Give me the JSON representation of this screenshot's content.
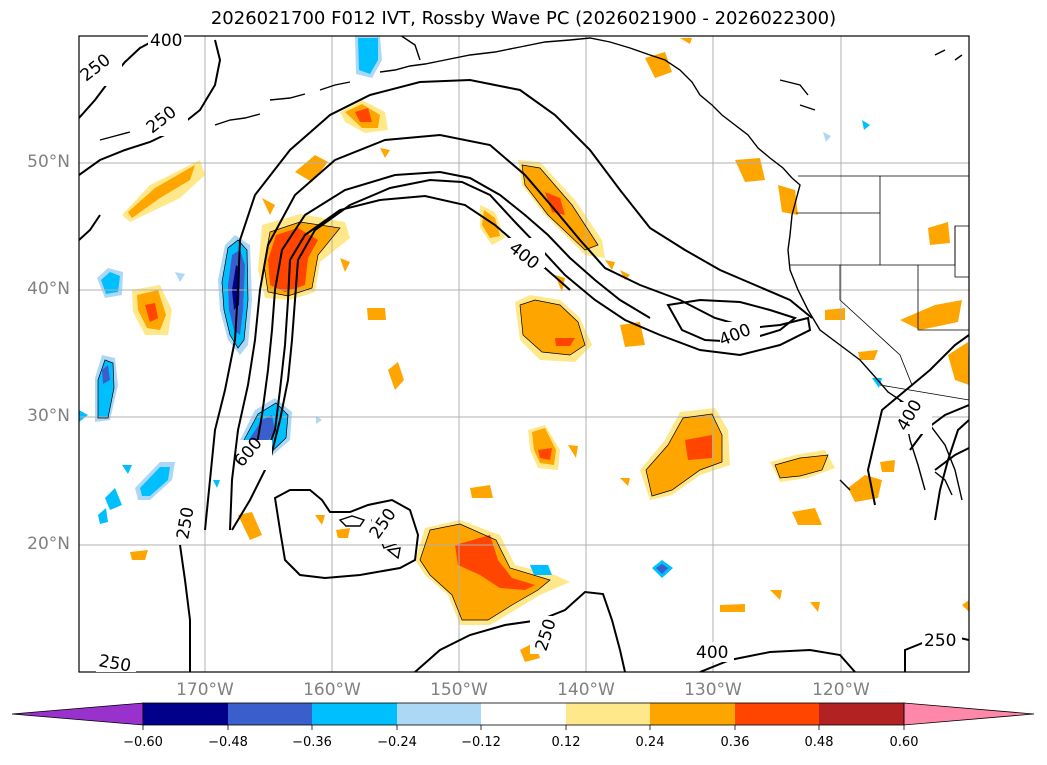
{
  "title": "2026021700 F012 IVT, Rossby Wave PC (2026021900 - 2026022300)",
  "lat_labels": [
    "50°N",
    "40°N",
    "30°N",
    "20°N"
  ],
  "lon_labels": [
    "170°W",
    "160°W",
    "150°W",
    "140°W",
    "130°W",
    "120°W"
  ],
  "contour_labels": [
    "400",
    "250",
    "250",
    "400",
    "400",
    "600",
    "250",
    "250",
    "250",
    "400",
    "250",
    "250",
    "400"
  ],
  "colorbar": {
    "ticks": [
      "−0.60",
      "−0.48",
      "−0.36",
      "−0.24",
      "−0.12",
      "0.12",
      "0.24",
      "0.36",
      "0.48",
      "0.60"
    ],
    "colors": [
      "#9932cc",
      "#00008b",
      "#3a5fcd",
      "#00bfff",
      "#add8f5",
      "#ffffff",
      "#ffe88a",
      "#ffa500",
      "#ff4500",
      "#b22222",
      "#ff88aa"
    ]
  },
  "colors": {
    "contour": "#000000",
    "grid": "#b0b0b0",
    "pos_low": "#ffe88a",
    "pos_mid": "#ffa500",
    "pos_high": "#ff4500",
    "neg_low": "#add8f5",
    "neg_mid": "#00bfff",
    "neg_high": "#3a5fcd",
    "neg_max": "#00008b"
  }
}
